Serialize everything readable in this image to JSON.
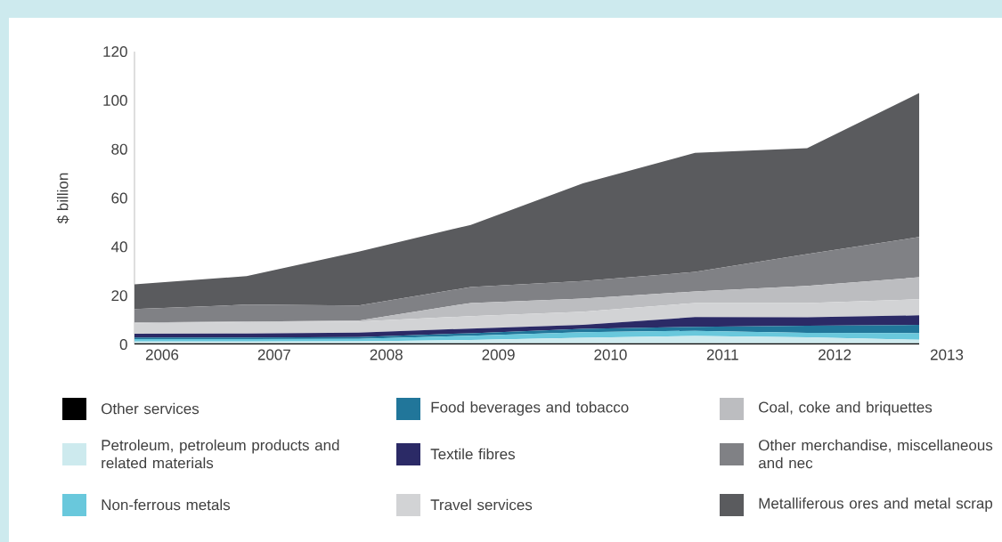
{
  "chart_data": {
    "type": "area",
    "stacked": true,
    "ylabel": "$ billion",
    "categories": [
      "2006",
      "2007",
      "2008",
      "2009",
      "2010",
      "2011",
      "2012",
      "2013"
    ],
    "ylim": [
      0,
      120
    ],
    "yticks": [
      0,
      20,
      40,
      60,
      80,
      100,
      120
    ],
    "grid": false,
    "legend": "bottom",
    "series": [
      {
        "name": "Other services",
        "color": "#000000",
        "values": [
          0.5,
          0.5,
          0.5,
          0.5,
          0.5,
          0.5,
          0.5,
          0.5
        ]
      },
      {
        "name": "Petroleum, petroleum products and related materials",
        "color": "#cdeaee",
        "values": [
          0.7,
          0.7,
          0.8,
          1.3,
          2.2,
          3.0,
          2.4,
          1.4
        ]
      },
      {
        "name": "Non-ferrous metals",
        "color": "#69c8dc",
        "values": [
          1.0,
          1.0,
          1.0,
          1.8,
          2.3,
          2.1,
          1.8,
          2.7
        ]
      },
      {
        "name": "Food beverages and tobacco",
        "color": "#21769a",
        "values": [
          0.6,
          0.6,
          0.7,
          1.0,
          1.4,
          1.6,
          3.0,
          3.4
        ]
      },
      {
        "name": "Textile fibres",
        "color": "#2b2a66",
        "values": [
          1.6,
          1.7,
          1.8,
          1.9,
          1.6,
          4.0,
          3.4,
          3.9
        ]
      },
      {
        "name": "Travel services",
        "color": "#d2d3d5",
        "values": [
          4.3,
          4.6,
          4.6,
          5.1,
          5.4,
          5.8,
          5.9,
          6.6
        ]
      },
      {
        "name": "Coal, coke and briquettes",
        "color": "#bcbdc0",
        "values": [
          0.3,
          0.3,
          0.4,
          5.4,
          5.4,
          4.7,
          7.0,
          9.0
        ]
      },
      {
        "name": "Other merchandise, miscellaneous and nec",
        "color": "#808185",
        "values": [
          5.5,
          6.9,
          6.2,
          6.5,
          7.2,
          8.0,
          13.0,
          16.5
        ]
      },
      {
        "name": "Metalliferous ores and metal scrap",
        "color": "#5a5b5e",
        "values": [
          10.1,
          11.7,
          22.0,
          25.5,
          40.0,
          48.8,
          43.4,
          59.0
        ]
      }
    ]
  }
}
